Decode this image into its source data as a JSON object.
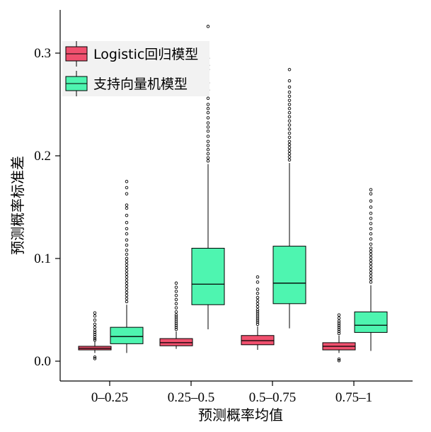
{
  "chart_data": {
    "type": "boxplot",
    "categories": [
      "0–0.25",
      "0.25–0.5",
      "0.5–0.75",
      "0.75–1"
    ],
    "xlabel": "预测概率均值",
    "ylabel": "预测概率标准差",
    "ylim": [
      -0.008,
      0.34
    ],
    "yticks": [
      0.0,
      0.1,
      0.2,
      0.3
    ],
    "ytick_labels": [
      "0.0",
      "0.1",
      "0.2",
      "0.3"
    ],
    "grid": false,
    "legend_position": "top-left",
    "series": [
      {
        "name": "Logistic回归模型",
        "color": "#F0506E",
        "boxes": [
          {
            "whisker_low": 0.008,
            "q1": 0.011,
            "median": 0.0125,
            "q3": 0.0145,
            "whisker_high": 0.019,
            "outliers": [
              0.0025,
              0.004,
              0.0205,
              0.022,
              0.024,
              0.026,
              0.028,
              0.03,
              0.033,
              0.036,
              0.04,
              0.044,
              0.047
            ]
          },
          {
            "whisker_low": 0.012,
            "q1": 0.015,
            "median": 0.018,
            "q3": 0.022,
            "whisker_high": 0.029,
            "outliers": [
              0.031,
              0.033,
              0.035,
              0.037,
              0.039,
              0.041,
              0.043,
              0.045,
              0.048,
              0.052,
              0.056,
              0.06,
              0.064,
              0.068,
              0.072,
              0.076
            ]
          },
          {
            "whisker_low": 0.011,
            "q1": 0.016,
            "median": 0.02,
            "q3": 0.025,
            "whisker_high": 0.034,
            "outliers": [
              0.036,
              0.038,
              0.04,
              0.042,
              0.044,
              0.046,
              0.048,
              0.05,
              0.053,
              0.056,
              0.059,
              0.062,
              0.066,
              0.07,
              0.077,
              0.082
            ]
          },
          {
            "whisker_low": 0.008,
            "q1": 0.011,
            "median": 0.0145,
            "q3": 0.018,
            "whisker_high": 0.025,
            "outliers": [
              0.0005,
              0.002,
              0.027,
              0.029,
              0.031,
              0.033,
              0.035,
              0.037,
              0.039,
              0.042,
              0.045
            ]
          }
        ]
      },
      {
        "name": "支持向量机模型",
        "color": "#4EF5B0",
        "boxes": [
          {
            "whisker_low": 0.008,
            "q1": 0.017,
            "median": 0.024,
            "q3": 0.033,
            "whisker_high": 0.055,
            "outliers": [
              0.058,
              0.061,
              0.064,
              0.067,
              0.07,
              0.073,
              0.076,
              0.079,
              0.082,
              0.085,
              0.088,
              0.091,
              0.094,
              0.097,
              0.1,
              0.104,
              0.108,
              0.113,
              0.118,
              0.124,
              0.129,
              0.135,
              0.142,
              0.149,
              0.152,
              0.163,
              0.169,
              0.175
            ]
          },
          {
            "whisker_low": 0.031,
            "q1": 0.055,
            "median": 0.075,
            "q3": 0.11,
            "whisker_high": 0.192,
            "outliers": [
              0.195,
              0.198,
              0.202,
              0.206,
              0.21,
              0.214,
              0.219,
              0.224,
              0.228,
              0.232,
              0.237,
              0.242,
              0.246,
              0.25,
              0.256,
              0.264,
              0.271,
              0.284,
              0.288,
              0.295,
              0.326
            ]
          },
          {
            "whisker_low": 0.032,
            "q1": 0.056,
            "median": 0.076,
            "q3": 0.112,
            "whisker_high": 0.193,
            "outliers": [
              0.196,
              0.199,
              0.202,
              0.205,
              0.208,
              0.211,
              0.214,
              0.218,
              0.222,
              0.226,
              0.23,
              0.234,
              0.238,
              0.242,
              0.246,
              0.25,
              0.254,
              0.258,
              0.262,
              0.267,
              0.273,
              0.284
            ]
          },
          {
            "whisker_low": 0.01,
            "q1": 0.028,
            "median": 0.035,
            "q3": 0.048,
            "whisker_high": 0.074,
            "outliers": [
              0.077,
              0.08,
              0.083,
              0.086,
              0.089,
              0.092,
              0.095,
              0.098,
              0.101,
              0.104,
              0.107,
              0.11,
              0.114,
              0.119,
              0.124,
              0.129,
              0.134,
              0.139,
              0.144,
              0.15,
              0.156,
              0.163,
              0.167
            ]
          }
        ]
      }
    ]
  }
}
